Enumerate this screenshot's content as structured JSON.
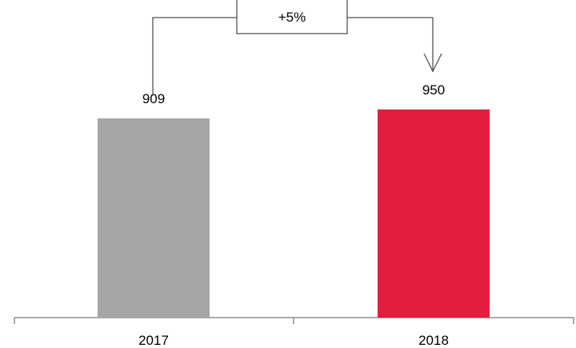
{
  "chart_data": {
    "type": "bar",
    "categories": [
      "2017",
      "2018"
    ],
    "values": [
      909,
      950
    ],
    "data_labels": [
      "909",
      "950"
    ],
    "colors": [
      "#a6a6a6",
      "#e31e3c"
    ],
    "ylim": [
      0,
      1000
    ],
    "grid": false,
    "legend": "none",
    "annotation": {
      "text": "+5%",
      "from_category": "2017",
      "to_category": "2018"
    }
  }
}
